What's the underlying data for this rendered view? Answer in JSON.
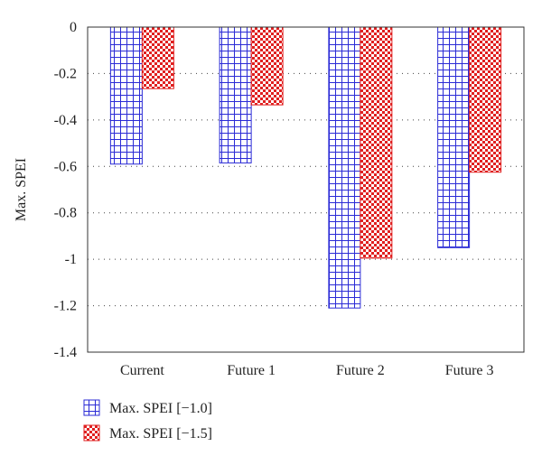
{
  "chart_data": {
    "type": "bar",
    "categories": [
      "Current",
      "Future 1",
      "Future 2",
      "Future 3"
    ],
    "series": [
      {
        "name": "Max. SPEI [−1.0]",
        "values": [
          -0.59,
          -0.585,
          -1.21,
          -0.95
        ],
        "color": "#2b2bd6",
        "pattern": "grid"
      },
      {
        "name": "Max. SPEI [−1.5]",
        "values": [
          -0.265,
          -0.335,
          -0.995,
          -0.625
        ],
        "color": "#e02020",
        "pattern": "checker"
      }
    ],
    "title": "",
    "xlabel": "",
    "ylabel": "Max. SPEI",
    "ylim": [
      -1.4,
      0
    ],
    "yticks": [
      0,
      -0.2,
      -0.4,
      -0.6,
      -0.8,
      -1,
      -1.2,
      -1.4
    ],
    "ytick_labels": [
      "0",
      "-0.2",
      "-0.4",
      "-0.6",
      "-0.8",
      "-1",
      "-1.2",
      "-1.4"
    ],
    "grid": "y-dotted",
    "legend": "bottom-left"
  }
}
